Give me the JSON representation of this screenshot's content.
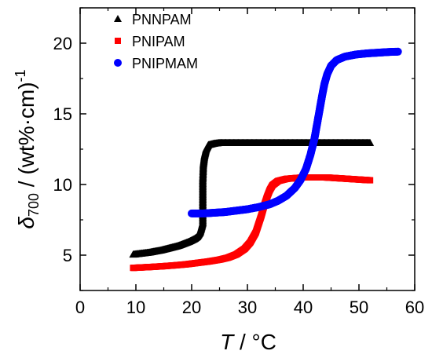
{
  "chart_data": {
    "type": "scatter",
    "xlim": [
      0,
      60
    ],
    "ylim": [
      2.5,
      22.5
    ],
    "x_ticks": [
      0,
      10,
      20,
      30,
      40,
      50,
      60
    ],
    "y_ticks": [
      5,
      10,
      15,
      20
    ],
    "x_tick_labels": [
      "0",
      "10",
      "20",
      "30",
      "40",
      "50",
      "60"
    ],
    "y_tick_labels": [
      "5",
      "10",
      "15",
      "20"
    ],
    "xlabel": {
      "symbol": "T",
      "rest": " / °C"
    },
    "ylabel": {
      "symbol": "δ",
      "subscript": "700",
      "middle": " / (wt%·cm)",
      "superscript": "-1"
    },
    "legend_position": "top-left",
    "grid": false,
    "series": [
      {
        "name": "PNNPAM",
        "marker": "triangle",
        "color": "#000000",
        "points": [
          [
            9.5,
            5.05
          ],
          [
            10.5,
            5.1
          ],
          [
            11.5,
            5.15
          ],
          [
            12.5,
            5.2
          ],
          [
            13.5,
            5.28
          ],
          [
            14.5,
            5.35
          ],
          [
            15.5,
            5.45
          ],
          [
            16.5,
            5.55
          ],
          [
            17.5,
            5.65
          ],
          [
            18.5,
            5.8
          ],
          [
            19.5,
            5.95
          ],
          [
            20.5,
            6.15
          ],
          [
            21.0,
            6.3
          ],
          [
            21.5,
            6.6
          ],
          [
            21.8,
            7.0
          ],
          [
            22.0,
            7.3
          ],
          [
            22.0,
            8.8
          ],
          [
            22.0,
            10.3
          ],
          [
            22.1,
            11.4
          ],
          [
            22.3,
            12.0
          ],
          [
            22.6,
            12.5
          ],
          [
            23.0,
            12.8
          ],
          [
            24.0,
            12.9
          ],
          [
            25.0,
            12.95
          ],
          [
            27.0,
            12.95
          ],
          [
            30.0,
            12.95
          ],
          [
            33.0,
            12.95
          ],
          [
            36.0,
            12.95
          ],
          [
            39.0,
            12.95
          ],
          [
            42.0,
            12.95
          ],
          [
            45.0,
            12.95
          ],
          [
            48.0,
            12.95
          ],
          [
            50.0,
            12.95
          ],
          [
            52.0,
            12.95
          ]
        ]
      },
      {
        "name": "PNIPAM",
        "marker": "square",
        "color": "#ff0000",
        "points": [
          [
            9.5,
            4.1
          ],
          [
            11.0,
            4.13
          ],
          [
            13.0,
            4.17
          ],
          [
            15.0,
            4.22
          ],
          [
            17.0,
            4.28
          ],
          [
            19.0,
            4.35
          ],
          [
            21.0,
            4.45
          ],
          [
            23.0,
            4.55
          ],
          [
            25.0,
            4.68
          ],
          [
            26.5,
            4.82
          ],
          [
            28.0,
            5.05
          ],
          [
            29.5,
            5.45
          ],
          [
            30.5,
            5.9
          ],
          [
            31.5,
            6.6
          ],
          [
            32.5,
            7.8
          ],
          [
            33.0,
            8.5
          ],
          [
            33.5,
            9.1
          ],
          [
            34.0,
            9.6
          ],
          [
            34.5,
            9.95
          ],
          [
            35.5,
            10.25
          ],
          [
            37.0,
            10.4
          ],
          [
            38.5,
            10.45
          ],
          [
            40.0,
            10.5
          ],
          [
            42.0,
            10.5
          ],
          [
            44.0,
            10.5
          ],
          [
            46.0,
            10.45
          ],
          [
            48.0,
            10.4
          ],
          [
            50.0,
            10.35
          ],
          [
            52.0,
            10.3
          ]
        ]
      },
      {
        "name": "PNIPMAM",
        "marker": "circle",
        "color": "#0000ff",
        "points": [
          [
            20.0,
            7.95
          ],
          [
            22.0,
            7.95
          ],
          [
            24.0,
            8.0
          ],
          [
            26.0,
            8.05
          ],
          [
            28.0,
            8.15
          ],
          [
            30.0,
            8.25
          ],
          [
            32.0,
            8.4
          ],
          [
            34.0,
            8.6
          ],
          [
            35.5,
            8.85
          ],
          [
            37.0,
            9.2
          ],
          [
            38.5,
            9.75
          ],
          [
            39.5,
            10.3
          ],
          [
            40.5,
            11.1
          ],
          [
            41.3,
            12.1
          ],
          [
            42.0,
            13.2
          ],
          [
            42.5,
            14.3
          ],
          [
            43.0,
            15.4
          ],
          [
            43.4,
            16.3
          ],
          [
            43.8,
            17.1
          ],
          [
            44.3,
            17.8
          ],
          [
            45.0,
            18.4
          ],
          [
            46.0,
            18.8
          ],
          [
            47.5,
            19.05
          ],
          [
            49.5,
            19.2
          ],
          [
            51.5,
            19.28
          ],
          [
            53.5,
            19.33
          ],
          [
            55.5,
            19.38
          ],
          [
            57.0,
            19.4
          ]
        ]
      }
    ]
  }
}
